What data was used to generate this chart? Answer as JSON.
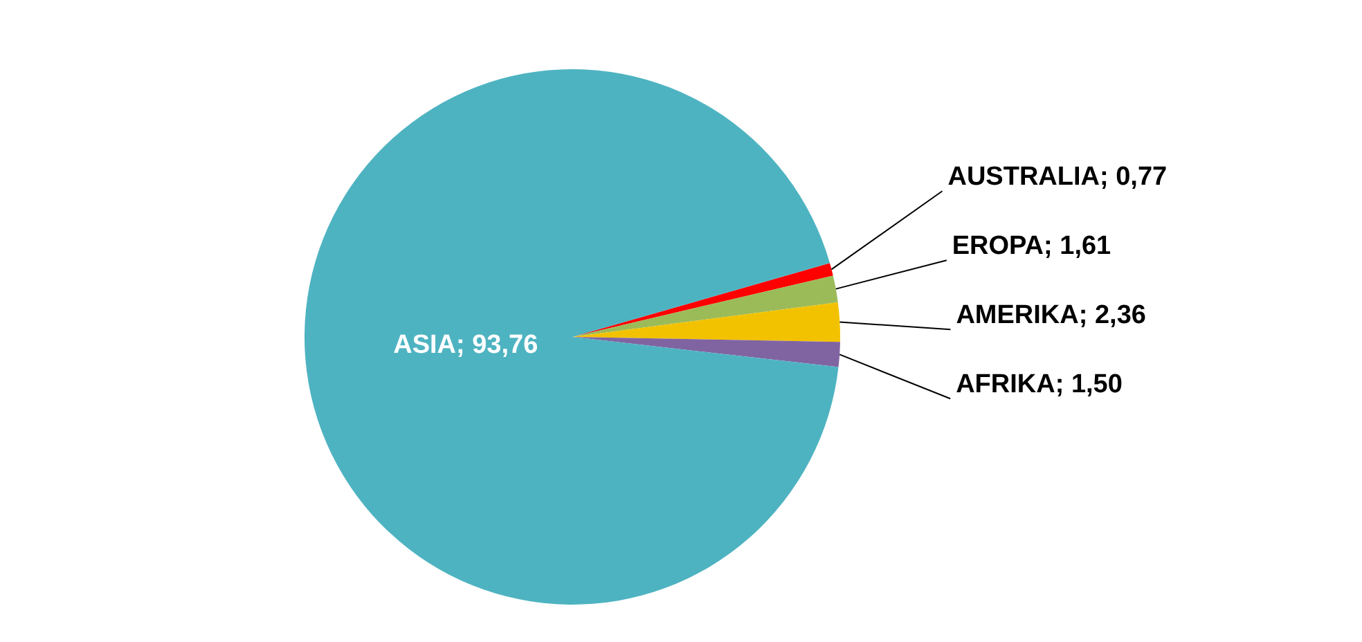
{
  "chart_data": {
    "type": "pie",
    "categories": [
      "AUSTRALIA",
      "EROPA",
      "AMERIKA",
      "AFRIKA",
      "ASIA"
    ],
    "values": [
      0.77,
      1.61,
      2.36,
      1.5,
      93.76
    ],
    "value_labels": [
      "0,77",
      "1,61",
      "2,36",
      "1,50",
      "93,76"
    ],
    "colors": [
      "#ff0000",
      "#9bbb59",
      "#f2c200",
      "#8064a2",
      "#4eb3c1"
    ],
    "legend": false
  }
}
